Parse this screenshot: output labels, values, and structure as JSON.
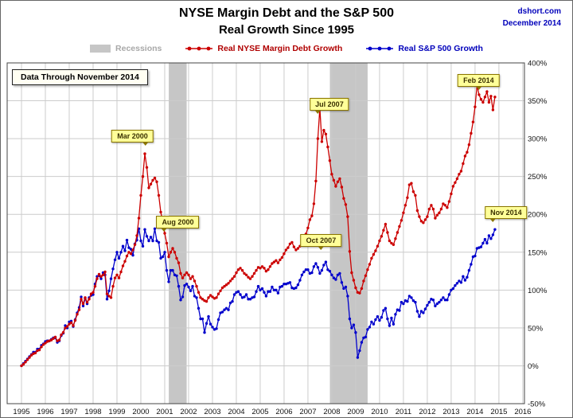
{
  "header": {
    "source_site": "dshort.com",
    "source_date": "December 2014"
  },
  "chart_data": {
    "type": "line",
    "title": "NYSE Margin Debt and the S&P 500",
    "subtitle": "Real Growth Since 1995",
    "data_through_note": "Data Through November 2014",
    "recessions_label": "Recessions",
    "recession_color": "#c6c6c6",
    "grid": true,
    "legend_position": "top",
    "x_range": [
      1994.4,
      2016.07
    ],
    "x_axis": {
      "ticks": [
        1995,
        1996,
        1997,
        1998,
        1999,
        2000,
        2001,
        2002,
        2003,
        2004,
        2005,
        2006,
        2007,
        2008,
        2009,
        2010,
        2011,
        2012,
        2013,
        2014,
        2015,
        2016
      ]
    },
    "y_axis": {
      "range": [
        -50,
        400
      ],
      "ticks": [
        -50,
        0,
        50,
        100,
        150,
        200,
        250,
        300,
        350,
        400
      ],
      "unit": "%"
    },
    "recession_bands": [
      {
        "start": 2001.17,
        "end": 2001.92
      },
      {
        "start": 2007.92,
        "end": 2009.5
      }
    ],
    "series": [
      {
        "id": "margin-debt",
        "name": "Real NYSE Margin Debt Growth",
        "color": "#cc0000",
        "start_year": 1995,
        "points_per_year": 12,
        "values": [
          0,
          2,
          5,
          8,
          11,
          14,
          16,
          17,
          20,
          21,
          25,
          28,
          30,
          32,
          33,
          34,
          36,
          38,
          33,
          34,
          41,
          44,
          50,
          52,
          55,
          57,
          53,
          60,
          68,
          74,
          88,
          82,
          90,
          84,
          88,
          95,
          97,
          105,
          115,
          121,
          118,
          120,
          124,
          95,
          92,
          90,
          105,
          116,
          120,
          116,
          124,
          132,
          138,
          145,
          150,
          148,
          153,
          160,
          172,
          195,
          225,
          250,
          280,
          262,
          235,
          240,
          245,
          248,
          243,
          225,
          203,
          190,
          175,
          162,
          144,
          150,
          155,
          150,
          142,
          136,
          122,
          116,
          120,
          123,
          120,
          115,
          118,
          112,
          105,
          97,
          90,
          88,
          86,
          85,
          90,
          93,
          91,
          89,
          90,
          95,
          99,
          103,
          105,
          107,
          109,
          112,
          115,
          118,
          123,
          127,
          129,
          126,
          122,
          120,
          117,
          115,
          118,
          122,
          126,
          130,
          129,
          131,
          129,
          125,
          127,
          131,
          135,
          137,
          139,
          136,
          140,
          143,
          148,
          153,
          156,
          161,
          163,
          157,
          153,
          155,
          158,
          163,
          169,
          174,
          182,
          193,
          198,
          214,
          244,
          300,
          340,
          296,
          311,
          306,
          289,
          271,
          253,
          245,
          237,
          243,
          247,
          236,
          221,
          213,
          197,
          151,
          123,
          113,
          103,
          97,
          96,
          102,
          112,
          119,
          127,
          134,
          142,
          147,
          152,
          158,
          165,
          171,
          179,
          187,
          176,
          165,
          162,
          160,
          168,
          176,
          184,
          192,
          202,
          212,
          222,
          239,
          241,
          230,
          225,
          205,
          197,
          191,
          189,
          193,
          197,
          207,
          212,
          207,
          195,
          199,
          202,
          207,
          214,
          212,
          209,
          217,
          227,
          237,
          242,
          247,
          253,
          257,
          267,
          277,
          282,
          292,
          307,
          322,
          342,
          370,
          358,
          352,
          348,
          355,
          362,
          348,
          356,
          338,
          355
        ]
      },
      {
        "id": "sp500",
        "name": "Real S&P 500 Growth",
        "color": "#0000cc",
        "start_year": 1995,
        "points_per_year": 12,
        "values": [
          0,
          3,
          6,
          9,
          12,
          15,
          18,
          18,
          22,
          22,
          27,
          29,
          32,
          33,
          33,
          35,
          37,
          37,
          31,
          33,
          40,
          43,
          53,
          50,
          58,
          59,
          52,
          61,
          70,
          77,
          91,
          79,
          89,
          82,
          90,
          93,
          94,
          108,
          118,
          119,
          115,
          123,
          120,
          88,
          99,
          115,
          128,
          140,
          150,
          142,
          150,
          158,
          152,
          166,
          156,
          154,
          146,
          161,
          166,
          181,
          165,
          158,
          180,
          171,
          165,
          170,
          165,
          181,
          165,
          163,
          142,
          144,
          150,
          126,
          111,
          126,
          126,
          120,
          119,
          105,
          87,
          91,
          106,
          108,
          104,
          99,
          105,
          92,
          90,
          76,
          62,
          62,
          44,
          56,
          65,
          55,
          51,
          48,
          49,
          61,
          70,
          71,
          74,
          76,
          74,
          83,
          85,
          94,
          97,
          98,
          94,
          90,
          91,
          94,
          88,
          88,
          90,
          91,
          98,
          105,
          100,
          102,
          97,
          92,
          98,
          98,
          104,
          100,
          100,
          96,
          104,
          105,
          108,
          108,
          109,
          110,
          103,
          102,
          103,
          107,
          113,
          120,
          124,
          127,
          127,
          122,
          123,
          131,
          135,
          130,
          122,
          126,
          133,
          137,
          127,
          125,
          120,
          116,
          114,
          120,
          122,
          110,
          102,
          104,
          92,
          62,
          50,
          54,
          44,
          11,
          20,
          31,
          37,
          38,
          48,
          51,
          58,
          55,
          61,
          65,
          60,
          64,
          73,
          76,
          62,
          53,
          63,
          55,
          68,
          74,
          73,
          84,
          82,
          86,
          85,
          92,
          90,
          86,
          84,
          72,
          65,
          72,
          70,
          75,
          80,
          84,
          88,
          87,
          79,
          82,
          84,
          87,
          90,
          87,
          87,
          94,
          100,
          102,
          106,
          109,
          112,
          110,
          118,
          113,
          117,
          126,
          134,
          144,
          145,
          155,
          156,
          157,
          162,
          167,
          162,
          172,
          168,
          173,
          180
        ]
      }
    ],
    "callouts": [
      {
        "label": "Mar 2000",
        "x": 1999.65,
        "y": 303,
        "tail": "br"
      },
      {
        "label": "Aug 2000",
        "x": 2001.55,
        "y": 190,
        "tail": "bl"
      },
      {
        "label": "Jul 2007",
        "x": 2007.9,
        "y": 345,
        "tail": "bl"
      },
      {
        "label": "Oct 2007",
        "x": 2007.55,
        "y": 166,
        "tail": "bc"
      },
      {
        "label": "Feb 2014",
        "x": 2014.15,
        "y": 377,
        "tail": "bc"
      },
      {
        "label": "Nov 2014",
        "x": 2015.3,
        "y": 202,
        "tail": "bl"
      }
    ]
  }
}
